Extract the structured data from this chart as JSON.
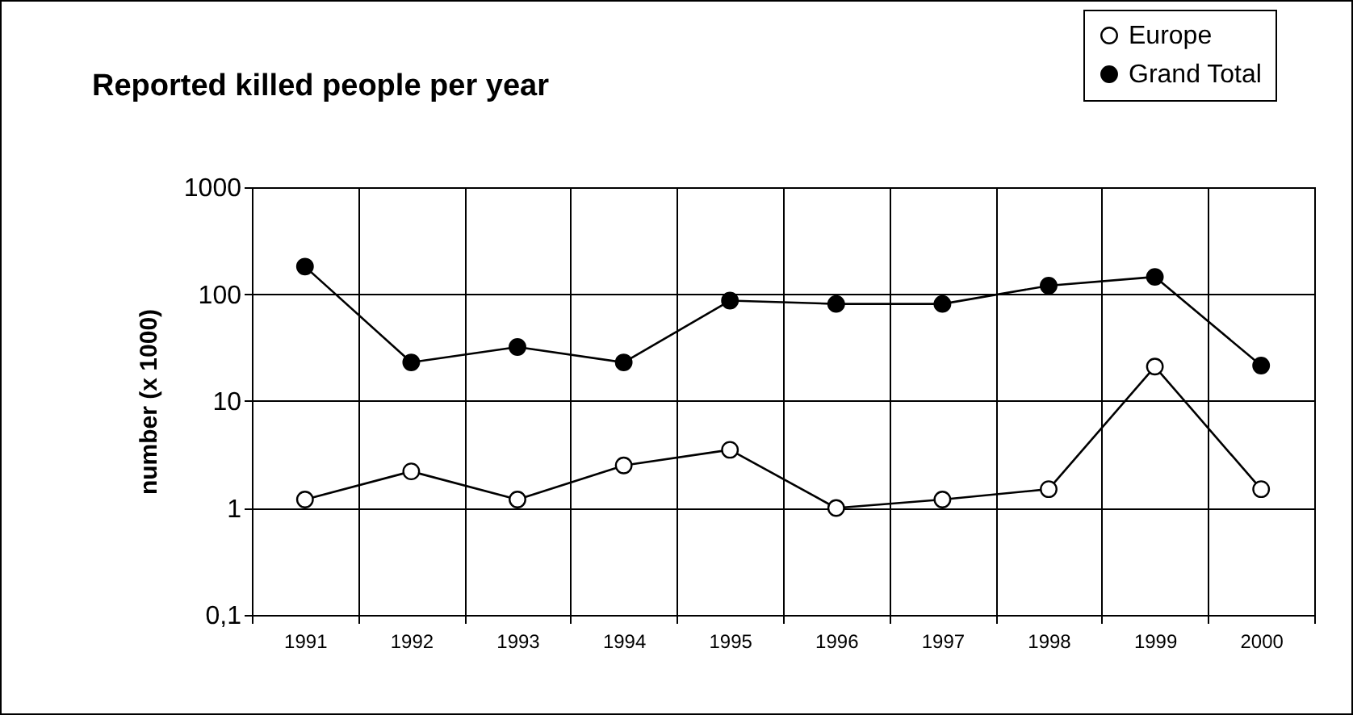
{
  "chart_data": {
    "type": "line",
    "title": "Reported killed people per year",
    "ylabel": "number (x 1000)",
    "categories": [
      "1991",
      "1992",
      "1993",
      "1994",
      "1995",
      "1996",
      "1997",
      "1998",
      "1999",
      "2000"
    ],
    "series": [
      {
        "name": "Europe",
        "color": "#000000",
        "values": [
          1.2,
          2.2,
          1.2,
          2.5,
          3.5,
          1,
          1.2,
          1.5,
          21,
          1.5
        ]
      },
      {
        "name": "Grand Total",
        "color": "#000000",
        "values": [
          181,
          23,
          32,
          23,
          87,
          81,
          81,
          120,
          145,
          21.5
        ]
      }
    ],
    "log": true,
    "ylim": [
      0.1,
      1000
    ],
    "yticks": [
      {
        "value": 0.1,
        "label": "0,1"
      },
      1,
      10,
      100,
      1000
    ],
    "grid": true,
    "legend": "top right",
    "marker": "circle",
    "line_style": "solid"
  }
}
